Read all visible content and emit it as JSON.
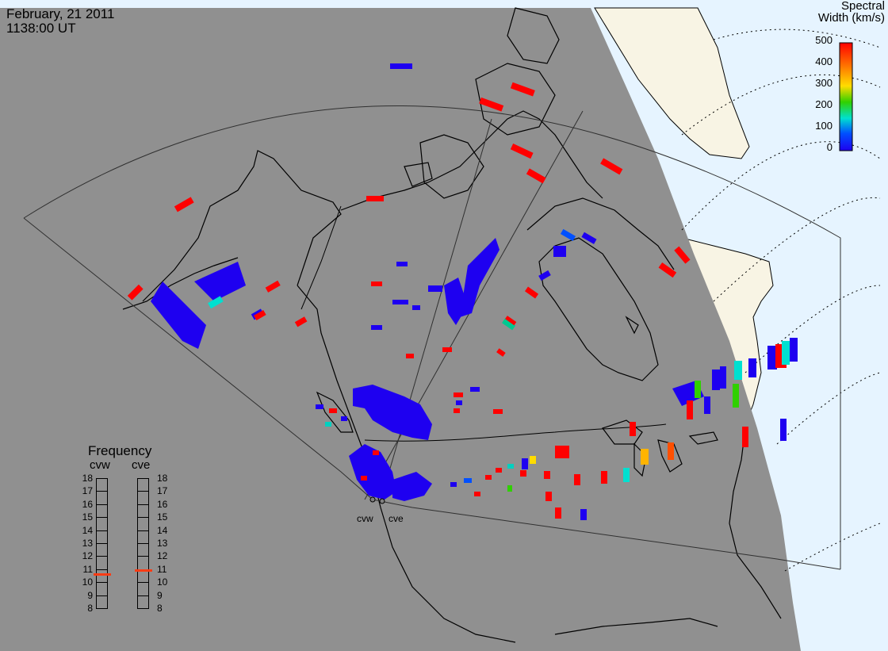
{
  "header": {
    "date": "February, 21 2011",
    "time": "1138:00 UT"
  },
  "colorbar": {
    "title_line1": "Spectral",
    "title_line2": "Width (km/s)",
    "ticks": [
      "500",
      "400",
      "300",
      "200",
      "100",
      "0"
    ],
    "min": 0,
    "max": 500,
    "colors": [
      "#ff0000",
      "#ff7800",
      "#ffdc00",
      "#30d000",
      "#00e0d0",
      "#0050ff",
      "#1e00f0"
    ]
  },
  "frequency_panel": {
    "title": "Frequency",
    "stations": [
      "cvw",
      "cve"
    ],
    "levels": [
      "18",
      "17",
      "16",
      "15",
      "14",
      "13",
      "12",
      "11",
      "10",
      "9",
      "8"
    ],
    "cvw_mhz": 10.6,
    "cve_mhz": 10.9
  },
  "radar_sites": {
    "cvw": "cvw",
    "cve": "cve"
  },
  "map_colors": {
    "night_side": "#909090",
    "day_ocean": "#e6f4ff",
    "day_land": "#f8f4e4",
    "coastline": "#000000"
  }
}
